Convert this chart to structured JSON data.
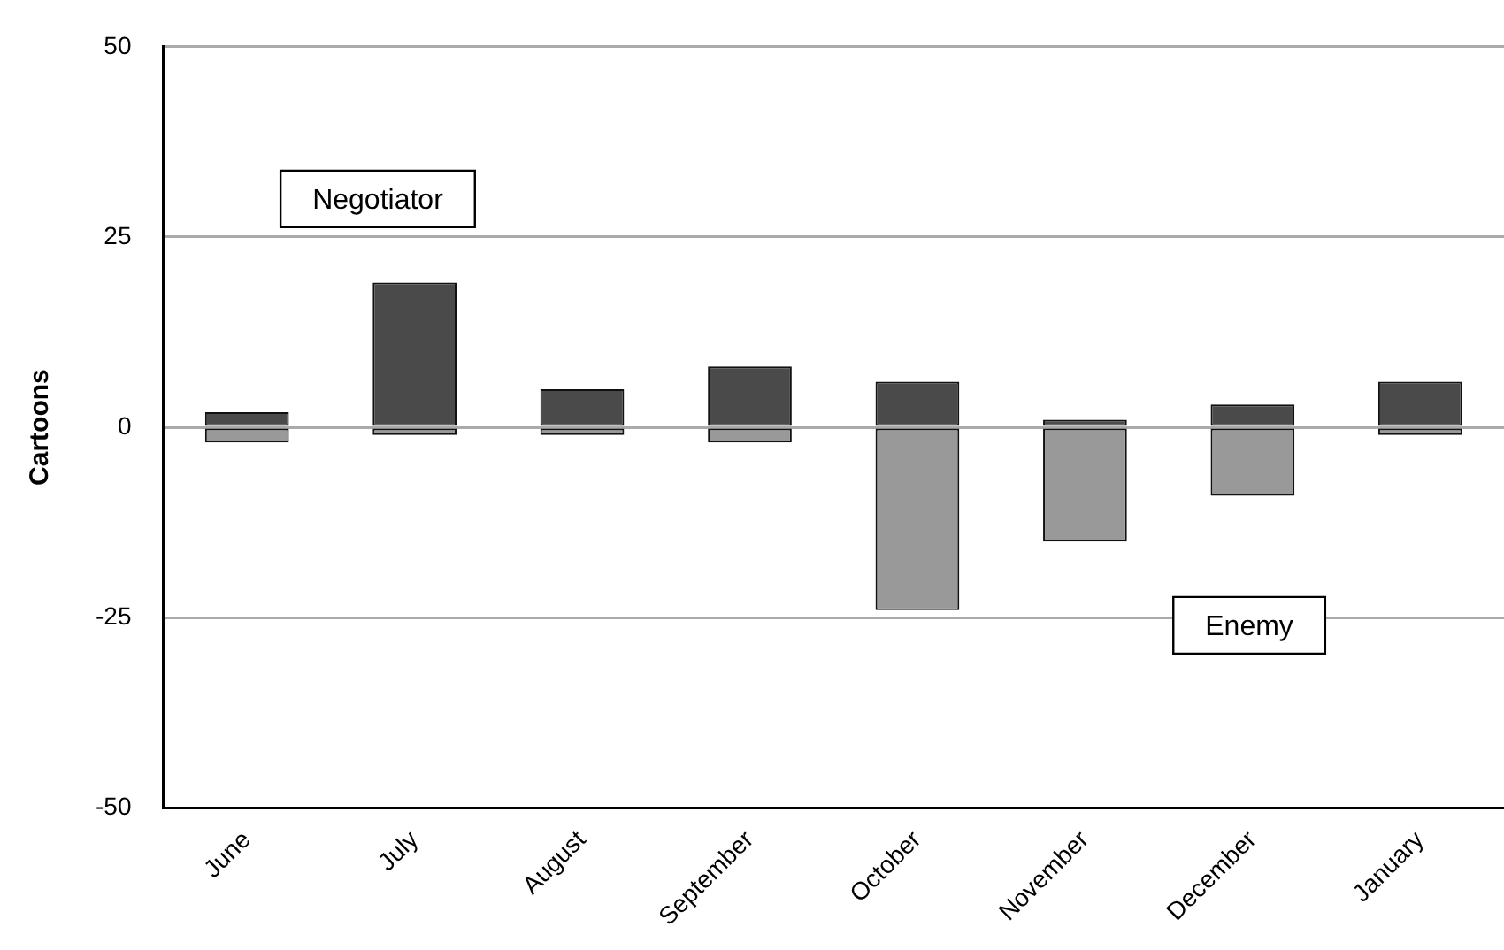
{
  "chart_data": {
    "type": "bar",
    "ylabel": "Cartoons",
    "categories": [
      "June",
      "July",
      "August",
      "September",
      "October",
      "November",
      "December",
      "January"
    ],
    "series": [
      {
        "color": "#4a4a4a",
        "values": [
          2,
          19,
          5,
          8,
          6,
          1,
          3,
          6
        ]
      },
      {
        "color": "#999999",
        "values": [
          -2,
          -1,
          -1,
          -2,
          -24,
          -15,
          -9,
          -1
        ]
      }
    ],
    "annotations": [
      "Negotiator",
      "Enemy"
    ],
    "stacked": true,
    "ylim": [
      -50,
      50
    ],
    "yticks": [
      -50,
      -25,
      0,
      25,
      50
    ],
    "grid": "y",
    "legend": false
  }
}
